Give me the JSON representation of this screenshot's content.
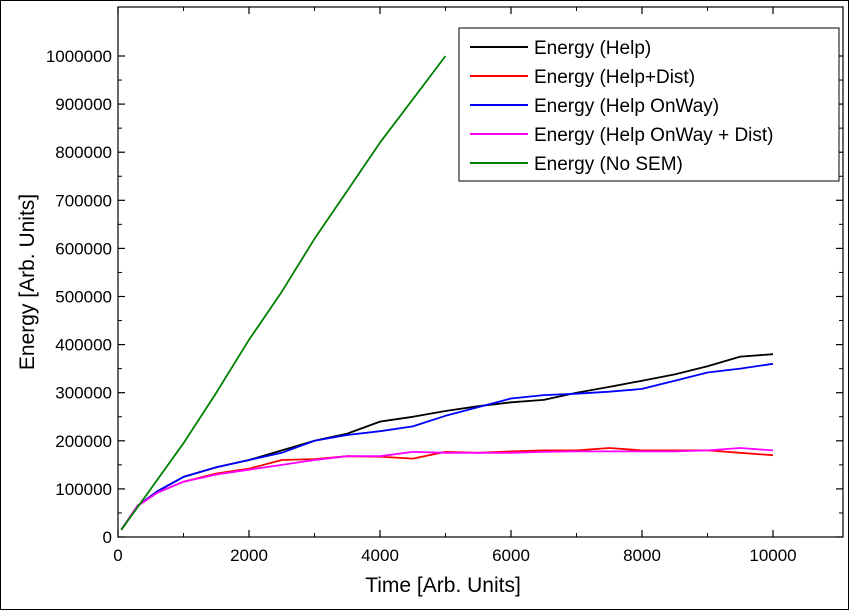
{
  "chart_data": {
    "type": "line",
    "title": "",
    "xlabel": "Time [Arb. Units]",
    "ylabel": "Energy [Arb. Units]",
    "xlim": [
      0,
      10000
    ],
    "ylim": [
      0,
      1000000
    ],
    "x_ticks": [
      "0",
      "2000",
      "4000",
      "6000",
      "8000",
      "10000"
    ],
    "y_ticks": [
      "0",
      "100000",
      "200000",
      "300000",
      "400000",
      "500000",
      "600000",
      "700000",
      "800000",
      "900000",
      "1000000"
    ],
    "grid": false,
    "legend_position": "top-right",
    "series": [
      {
        "name": "Energy (Help)",
        "color": "#000000",
        "x": [
          50,
          300,
          600,
          1000,
          1500,
          2000,
          2500,
          3000,
          3500,
          4000,
          4500,
          5000,
          5500,
          6000,
          6500,
          7000,
          7500,
          8000,
          8500,
          9000,
          9500,
          10000
        ],
        "y": [
          15000,
          65000,
          95000,
          125000,
          145000,
          160000,
          180000,
          200000,
          215000,
          240000,
          250000,
          262000,
          272000,
          280000,
          285000,
          300000,
          312000,
          325000,
          338000,
          355000,
          375000,
          380000
        ]
      },
      {
        "name": "Energy (Help+Dist)",
        "color": "#ff0000",
        "x": [
          50,
          300,
          600,
          1000,
          1500,
          2000,
          2500,
          3000,
          3500,
          4000,
          4500,
          5000,
          5500,
          6000,
          6500,
          7000,
          7500,
          8000,
          8500,
          9000,
          9500,
          10000
        ],
        "y": [
          15000,
          65000,
          92000,
          115000,
          132000,
          142000,
          160000,
          162000,
          168000,
          167000,
          163000,
          177000,
          175000,
          178000,
          180000,
          180000,
          185000,
          180000,
          180000,
          180000,
          175000,
          170000
        ]
      },
      {
        "name": "Energy (Help OnWay)",
        "color": "#0000ff",
        "x": [
          50,
          300,
          600,
          1000,
          1500,
          2000,
          2500,
          3000,
          3500,
          4000,
          4500,
          5000,
          5500,
          6000,
          6500,
          7000,
          7500,
          8000,
          8500,
          9000,
          9500,
          10000
        ],
        "y": [
          15000,
          65000,
          95000,
          125000,
          145000,
          160000,
          175000,
          200000,
          212000,
          220000,
          230000,
          252000,
          270000,
          288000,
          295000,
          298000,
          302000,
          308000,
          325000,
          342000,
          350000,
          360000
        ]
      },
      {
        "name": "Energy (Help OnWay + Dist)",
        "color": "#ff00ff",
        "x": [
          50,
          300,
          600,
          1000,
          1500,
          2000,
          2500,
          3000,
          3500,
          4000,
          4500,
          5000,
          5500,
          6000,
          6500,
          7000,
          7500,
          8000,
          8500,
          9000,
          9500,
          10000
        ],
        "y": [
          15000,
          65000,
          92000,
          115000,
          130000,
          140000,
          150000,
          160000,
          168000,
          168000,
          177000,
          175000,
          175000,
          175000,
          177000,
          178000,
          178000,
          178000,
          178000,
          180000,
          185000,
          180000
        ]
      },
      {
        "name": "Energy (No SEM)",
        "color": "#008000",
        "x": [
          50,
          500,
          1000,
          1500,
          2000,
          2500,
          3000,
          3500,
          4000,
          4500,
          5000
        ],
        "y": [
          15000,
          100000,
          195000,
          300000,
          410000,
          510000,
          620000,
          720000,
          820000,
          910000,
          1000000
        ]
      }
    ]
  }
}
